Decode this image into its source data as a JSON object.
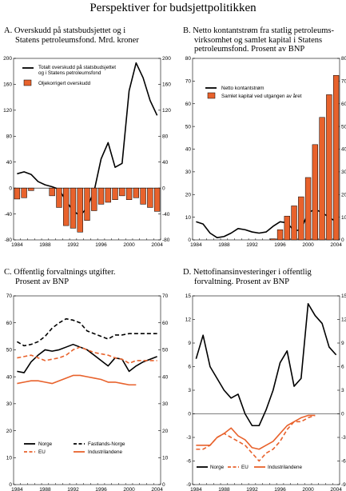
{
  "page_title": "Perspektiver for budsjettpolitikken",
  "colors": {
    "orange": "#e8622c",
    "black": "#000000",
    "dashed_orange": "#e8622c"
  },
  "chart_data": [
    {
      "id": "A",
      "type": "bar+line",
      "title_lines": [
        "A.  Overskudd på statsbudsjettet og i",
        "Statens petroleumsfond. Mrd. kroner"
      ],
      "x_ticks": [
        "1984",
        "1988",
        "1992",
        "1996",
        "2000",
        "2004"
      ],
      "y_ticks": [
        "200",
        "160",
        "120",
        "80",
        "40",
        "0",
        "-40",
        "-80"
      ],
      "ylim": [
        -80,
        200
      ],
      "years": [
        1984,
        1985,
        1986,
        1987,
        1988,
        1989,
        1990,
        1991,
        1992,
        1993,
        1994,
        1995,
        1996,
        1997,
        1998,
        1999,
        2000,
        2001,
        2002,
        2003,
        2004
      ],
      "series": [
        {
          "name": "Totalt overskudd på statsbudsjettet og i Statens petroleumsfond",
          "kind": "line",
          "values": [
            22,
            25,
            21,
            10,
            5,
            2,
            -2,
            -20,
            -35,
            -43,
            -30,
            -5,
            45,
            70,
            32,
            38,
            150,
            193,
            170,
            135,
            112
          ]
        },
        {
          "name": "Oljekorrigert overskudd",
          "kind": "bar",
          "values": [
            -17,
            -15,
            -4,
            0,
            0,
            -12,
            -30,
            -58,
            -62,
            -68,
            -50,
            -35,
            -25,
            -22,
            -18,
            -12,
            -18,
            -15,
            -25,
            -30,
            -36
          ]
        }
      ]
    },
    {
      "id": "B",
      "type": "bar+line",
      "title_lines": [
        "B.  Netto kontantstrøm fra statlig petroleums-",
        "virksomhet og samlet kapital i Statens",
        "petroleumsfond. Prosent av BNP"
      ],
      "x_ticks": [
        "1984",
        "1988",
        "1992",
        "1996",
        "2000",
        "2004"
      ],
      "y_ticks": [
        "80",
        "70",
        "60",
        "50",
        "40",
        "30",
        "20",
        "10",
        "0"
      ],
      "ylim": [
        0,
        80
      ],
      "years": [
        1984,
        1985,
        1986,
        1987,
        1988,
        1989,
        1990,
        1991,
        1992,
        1993,
        1994,
        1995,
        1996,
        1997,
        1998,
        1999,
        2000,
        2001,
        2002,
        2003,
        2004
      ],
      "series": [
        {
          "name": "Netto kontantstrøm",
          "kind": "line",
          "values": [
            8,
            7,
            3,
            1,
            1.5,
            3,
            5,
            4.5,
            3.5,
            3,
            3.5,
            6,
            8,
            7.5,
            4,
            4.5,
            12,
            13.5,
            12,
            10,
            8
          ]
        },
        {
          "name": "Samlet kapital ved utgangen av året",
          "kind": "bar",
          "values": [
            0,
            0,
            0,
            0,
            0,
            0,
            0,
            0,
            0,
            0,
            0,
            0.5,
            4.5,
            10.5,
            15,
            19,
            27.5,
            42,
            54,
            64,
            72.5
          ]
        }
      ]
    },
    {
      "id": "C",
      "type": "line",
      "title_lines": [
        "C.  Offentlig forvaltnings utgifter.",
        "Prosent av BNP"
      ],
      "x_ticks": [
        "1984",
        "1988",
        "1992",
        "1996",
        "2000",
        "2004"
      ],
      "y_ticks": [
        "70",
        "60",
        "50",
        "40",
        "30",
        "20",
        "10",
        "0"
      ],
      "ylim": [
        0,
        70
      ],
      "years": [
        1984,
        1985,
        1986,
        1987,
        1988,
        1989,
        1990,
        1991,
        1992,
        1993,
        1994,
        1995,
        1996,
        1997,
        1998,
        1999,
        2000,
        2001,
        2002,
        2003,
        2004
      ],
      "series": [
        {
          "name": "Norge",
          "style": "solid-black",
          "values": [
            42,
            41.5,
            45.5,
            48,
            50,
            49.5,
            50,
            51,
            52,
            51,
            50,
            48,
            46,
            44,
            47,
            46.5,
            42,
            44,
            45.5,
            46.5,
            47.5
          ]
        },
        {
          "name": "Fastlands-Norge",
          "style": "dashed-black",
          "values": [
            53,
            51.5,
            52,
            53,
            55,
            58,
            60,
            61.5,
            61,
            60,
            57,
            56,
            55,
            54,
            55.5,
            55.5,
            56,
            56,
            56,
            56,
            56
          ]
        },
        {
          "name": "EU",
          "style": "dashed-orange",
          "values": [
            47,
            47.5,
            48,
            47,
            46,
            46.5,
            47,
            48,
            50,
            51,
            50,
            49,
            48.5,
            48,
            47,
            46.5,
            45,
            46,
            46,
            46,
            46
          ]
        },
        {
          "name": "Industrilandene",
          "style": "solid-orange",
          "values": [
            37.5,
            38,
            38.5,
            38.5,
            38,
            37.5,
            38.5,
            39.5,
            40.5,
            40.5,
            40,
            39.5,
            39,
            38,
            38,
            37.5,
            37,
            37,
            null,
            null,
            null
          ]
        }
      ]
    },
    {
      "id": "D",
      "type": "line",
      "title_lines": [
        "D.  Nettofinansinvesteringer i offentlig",
        "forvaltning. Prosent av BNP"
      ],
      "x_ticks": [
        "1984",
        "1988",
        "1992",
        "1996",
        "2000",
        "2004"
      ],
      "y_ticks": [
        "15",
        "12",
        "9",
        "6",
        "3",
        "0",
        "-3",
        "-6",
        "-9"
      ],
      "ylim": [
        -9,
        15
      ],
      "years": [
        1984,
        1985,
        1986,
        1987,
        1988,
        1989,
        1990,
        1991,
        1992,
        1993,
        1994,
        1995,
        1996,
        1997,
        1998,
        1999,
        2000,
        2001,
        2002,
        2003,
        2004
      ],
      "series": [
        {
          "name": "Norge",
          "style": "solid-black",
          "values": [
            7,
            10,
            6,
            4.5,
            3,
            2,
            2.5,
            0,
            -1.5,
            -1.5,
            0.5,
            3,
            6.5,
            8,
            3.5,
            4.5,
            14,
            12.5,
            11.5,
            8.5,
            7.5
          ]
        },
        {
          "name": "EU",
          "style": "dashed-orange",
          "values": [
            -4.5,
            -4.5,
            -4,
            -3,
            -2.5,
            -3,
            -3.5,
            -4,
            -5,
            -6,
            -5,
            -4.5,
            -3.5,
            -2,
            -1,
            -1,
            -0.5,
            -0.2,
            null,
            null,
            null
          ]
        },
        {
          "name": "Industrilandene",
          "style": "solid-orange",
          "values": [
            -4,
            -4,
            -4,
            -3,
            -2.5,
            -1.8,
            -2.8,
            -3.3,
            -4.3,
            -4.5,
            -4,
            -3.5,
            -2.5,
            -1.5,
            -1,
            -0.5,
            -0.2,
            -0.2,
            null,
            null,
            null
          ]
        }
      ]
    }
  ]
}
